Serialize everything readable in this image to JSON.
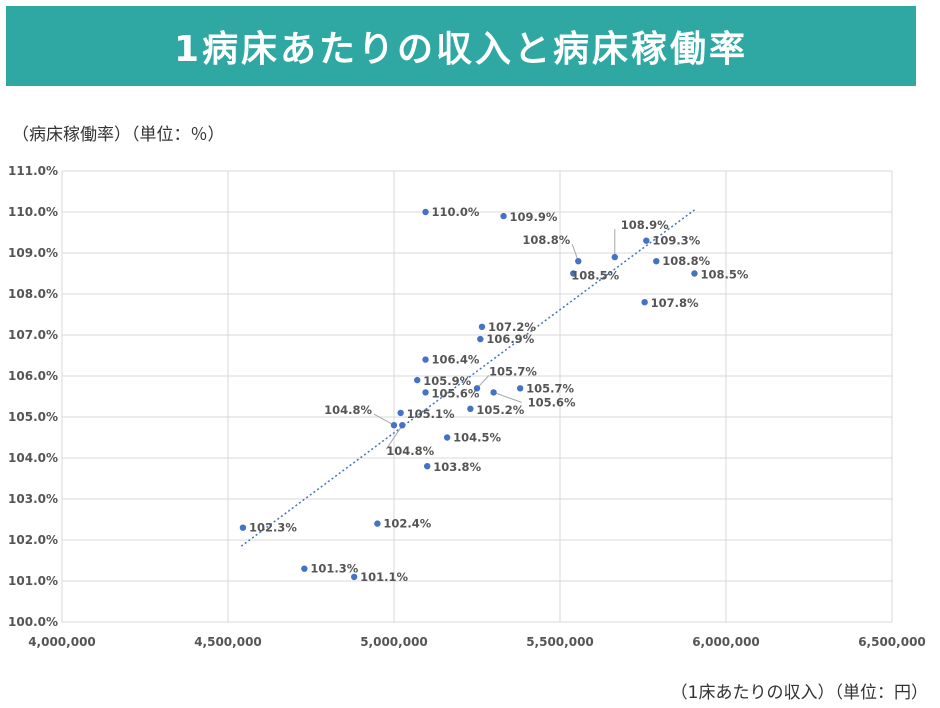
{
  "header": {
    "title": "1病床あたりの収入と病床稼働率"
  },
  "y_unit_label": "（病床稼働率）（単位：％）",
  "x_unit_label": "（1床あたりの収入）（単位：円）",
  "colors": {
    "banner": "#2fa8a3",
    "point": "#4472c4",
    "trendline": "#4472c4",
    "grid": "#d9d9d9"
  },
  "chart_data": {
    "type": "scatter",
    "title": "1病床あたりの収入と病床稼働率",
    "xlabel": "（1床あたりの収入）（単位：円）",
    "ylabel": "（病床稼働率）（単位：％）",
    "xlim": [
      4000000,
      6500000
    ],
    "ylim": [
      100.0,
      111.0
    ],
    "x_ticks": [
      4000000,
      4500000,
      5000000,
      5500000,
      6000000,
      6500000
    ],
    "x_tick_labels": [
      "4,000,000",
      "4,500,000",
      "5,000,000",
      "5,500,000",
      "6,000,000",
      "6,500,000"
    ],
    "y_ticks": [
      100,
      101,
      102,
      103,
      104,
      105,
      106,
      107,
      108,
      109,
      110,
      111
    ],
    "y_tick_labels": [
      "100.0%",
      "101.0%",
      "102.0%",
      "103.0%",
      "104.0%",
      "105.0%",
      "106.0%",
      "107.0%",
      "108.0%",
      "109.0%",
      "110.0%",
      "111.0%"
    ],
    "grid": true,
    "trendline": {
      "type": "linear",
      "from": [
        4540000,
        101.85
      ],
      "to": [
        5905000,
        110.05
      ]
    },
    "points": [
      {
        "x": 5095000,
        "y": 110.0,
        "label": "110.0%"
      },
      {
        "x": 5330000,
        "y": 109.9,
        "label": "109.9%"
      },
      {
        "x": 5760000,
        "y": 109.3,
        "label": "109.3%"
      },
      {
        "x": 5665000,
        "y": 108.9,
        "label": "108.9%"
      },
      {
        "x": 5555000,
        "y": 108.8,
        "label": "108.8%"
      },
      {
        "x": 5790000,
        "y": 108.8,
        "label": "108.8%"
      },
      {
        "x": 5540000,
        "y": 108.5,
        "label": "108.5%"
      },
      {
        "x": 5905000,
        "y": 108.5,
        "label": "108.5%"
      },
      {
        "x": 5755000,
        "y": 107.8,
        "label": "107.8%"
      },
      {
        "x": 5265000,
        "y": 107.2,
        "label": "107.2%"
      },
      {
        "x": 5260000,
        "y": 106.9,
        "label": "106.9%"
      },
      {
        "x": 5095000,
        "y": 106.4,
        "label": "106.4%"
      },
      {
        "x": 5070000,
        "y": 105.9,
        "label": "105.9%"
      },
      {
        "x": 5250000,
        "y": 105.7,
        "label": "105.7%"
      },
      {
        "x": 5380000,
        "y": 105.7,
        "label": "105.7%"
      },
      {
        "x": 5095000,
        "y": 105.6,
        "label": "105.6%"
      },
      {
        "x": 5300000,
        "y": 105.6,
        "label": "105.6%"
      },
      {
        "x": 5230000,
        "y": 105.2,
        "label": "105.2%"
      },
      {
        "x": 5020000,
        "y": 105.1,
        "label": "105.1%"
      },
      {
        "x": 5000000,
        "y": 104.8,
        "label": "104.8%"
      },
      {
        "x": 5025000,
        "y": 104.8,
        "label": "104.8%"
      },
      {
        "x": 5160000,
        "y": 104.5,
        "label": "104.5%"
      },
      {
        "x": 5100000,
        "y": 103.8,
        "label": "103.8%"
      },
      {
        "x": 4950000,
        "y": 102.4,
        "label": "102.4%"
      },
      {
        "x": 4545000,
        "y": 102.3,
        "label": "102.3%"
      },
      {
        "x": 4730000,
        "y": 101.3,
        "label": "101.3%"
      },
      {
        "x": 4880000,
        "y": 101.1,
        "label": "101.1%"
      }
    ]
  }
}
